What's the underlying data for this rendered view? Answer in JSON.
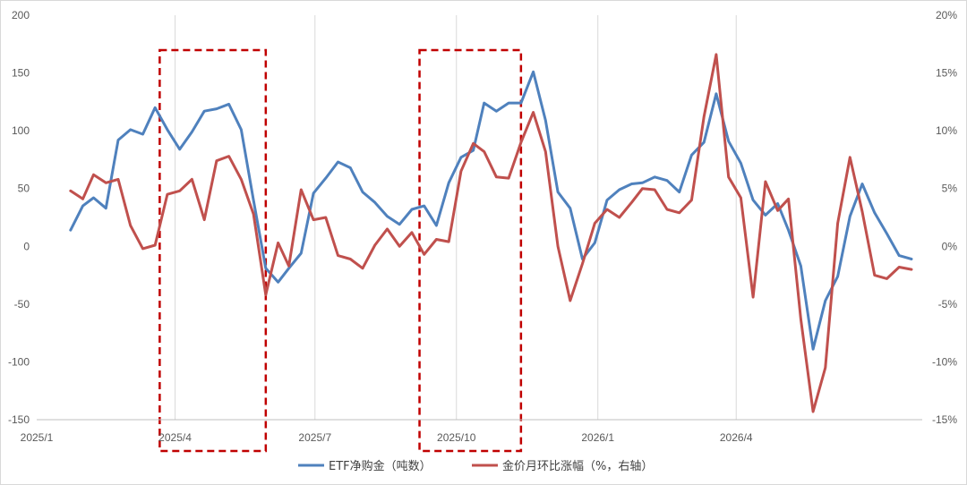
{
  "chart_data": {
    "type": "line",
    "title": "",
    "xlabel": "",
    "ylabel": "",
    "x_tick_labels": [
      "2025/1",
      "2025/4",
      "2025/7",
      "2025/10",
      "2026/1",
      "2026/4"
    ],
    "y_left": {
      "ylim": [
        -150,
        200
      ],
      "ticks": [
        -150,
        -100,
        -50,
        0,
        50,
        100,
        150,
        200
      ]
    },
    "y_right": {
      "ylim": [
        -15,
        20
      ],
      "ticks": [
        "-15%",
        "-10%",
        "-5%",
        "0%",
        "5%",
        "10%",
        "15%",
        "20%"
      ]
    },
    "grid": "vertical",
    "legend_position": "bottom",
    "highlight_boxes": [
      {
        "color": "#c00000",
        "from": "2025-03-22",
        "to": "2025-05-30",
        "style": "dashed"
      },
      {
        "color": "#c00000",
        "from": "2025-09-07",
        "to": "2025-11-12",
        "style": "dashed"
      }
    ],
    "series": [
      {
        "name": "ETF净购金（吨数）",
        "axis": "left",
        "color": "#4f81bd",
        "points": [
          [
            "2025-01-23",
            14
          ],
          [
            "2025-01-31",
            35
          ],
          [
            "2025-02-07",
            42
          ],
          [
            "2025-02-15",
            33
          ],
          [
            "2025-02-23",
            92
          ],
          [
            "2025-03-03",
            101
          ],
          [
            "2025-03-11",
            97
          ],
          [
            "2025-03-19",
            120
          ],
          [
            "2025-03-27",
            101
          ],
          [
            "2025-04-04",
            84
          ],
          [
            "2025-04-12",
            99
          ],
          [
            "2025-04-20",
            117
          ],
          [
            "2025-04-28",
            119
          ],
          [
            "2025-05-06",
            123
          ],
          [
            "2025-05-14",
            101
          ],
          [
            "2025-05-22",
            40
          ],
          [
            "2025-05-30",
            -19
          ],
          [
            "2025-06-07",
            -31
          ],
          [
            "2025-06-14",
            -19
          ],
          [
            "2025-06-22",
            -6
          ],
          [
            "2025-06-30",
            46
          ],
          [
            "2025-07-08",
            59
          ],
          [
            "2025-07-16",
            73
          ],
          [
            "2025-07-24",
            68
          ],
          [
            "2025-08-01",
            47
          ],
          [
            "2025-08-09",
            38
          ],
          [
            "2025-08-17",
            26
          ],
          [
            "2025-08-25",
            19
          ],
          [
            "2025-09-02",
            32
          ],
          [
            "2025-09-10",
            35
          ],
          [
            "2025-09-18",
            18
          ],
          [
            "2025-09-26",
            55
          ],
          [
            "2025-10-04",
            77
          ],
          [
            "2025-10-12",
            83
          ],
          [
            "2025-10-19",
            124
          ],
          [
            "2025-10-27",
            117
          ],
          [
            "2025-11-04",
            124
          ],
          [
            "2025-11-12",
            124
          ],
          [
            "2025-11-20",
            151
          ],
          [
            "2025-11-28",
            109
          ],
          [
            "2025-12-06",
            47
          ],
          [
            "2025-12-14",
            33
          ],
          [
            "2025-12-22",
            -11
          ],
          [
            "2025-12-30",
            3
          ],
          [
            "2026-01-07",
            40
          ],
          [
            "2026-01-15",
            49
          ],
          [
            "2026-01-23",
            54
          ],
          [
            "2026-01-30",
            55
          ],
          [
            "2026-02-07",
            60
          ],
          [
            "2026-02-15",
            57
          ],
          [
            "2026-02-23",
            47
          ],
          [
            "2026-03-03",
            79
          ],
          [
            "2026-03-11",
            90
          ],
          [
            "2026-03-19",
            132
          ],
          [
            "2026-03-27",
            91
          ],
          [
            "2026-04-04",
            72
          ],
          [
            "2026-04-12",
            40
          ],
          [
            "2026-04-20",
            27
          ],
          [
            "2026-04-28",
            37
          ],
          [
            "2026-05-05",
            14
          ],
          [
            "2026-05-13",
            -17
          ],
          [
            "2026-05-21",
            -89
          ],
          [
            "2026-05-29",
            -47
          ],
          [
            "2026-06-06",
            -26
          ],
          [
            "2026-06-14",
            26
          ],
          [
            "2026-06-22",
            54
          ],
          [
            "2026-06-30",
            29
          ],
          [
            "2026-07-08",
            11
          ],
          [
            "2026-07-16",
            -8
          ],
          [
            "2026-07-24",
            -11
          ]
        ]
      },
      {
        "name": "金价月环比涨幅（%，右轴）",
        "axis": "right",
        "color": "#c0504d",
        "points": [
          [
            "2025-01-23",
            4.8
          ],
          [
            "2025-01-31",
            4.1
          ],
          [
            "2025-02-07",
            6.2
          ],
          [
            "2025-02-15",
            5.5
          ],
          [
            "2025-02-23",
            5.8
          ],
          [
            "2025-03-03",
            1.8
          ],
          [
            "2025-03-11",
            -0.2
          ],
          [
            "2025-03-19",
            0.1
          ],
          [
            "2025-03-27",
            4.5
          ],
          [
            "2025-04-04",
            4.8
          ],
          [
            "2025-04-12",
            5.8
          ],
          [
            "2025-04-20",
            2.3
          ],
          [
            "2025-04-28",
            7.4
          ],
          [
            "2025-05-06",
            7.8
          ],
          [
            "2025-05-14",
            5.8
          ],
          [
            "2025-05-22",
            2.8
          ],
          [
            "2025-05-30",
            -4.2
          ],
          [
            "2025-06-07",
            0.3
          ],
          [
            "2025-06-14",
            -1.7
          ],
          [
            "2025-06-22",
            4.9
          ],
          [
            "2025-06-30",
            2.3
          ],
          [
            "2025-07-08",
            2.5
          ],
          [
            "2025-07-16",
            -0.8
          ],
          [
            "2025-07-24",
            -1.1
          ],
          [
            "2025-08-01",
            -1.9
          ],
          [
            "2025-08-09",
            0.1
          ],
          [
            "2025-08-17",
            1.5
          ],
          [
            "2025-08-25",
            0.0
          ],
          [
            "2025-09-02",
            1.2
          ],
          [
            "2025-09-10",
            -0.7
          ],
          [
            "2025-09-18",
            0.6
          ],
          [
            "2025-09-26",
            0.4
          ],
          [
            "2025-10-04",
            6.5
          ],
          [
            "2025-10-12",
            8.9
          ],
          [
            "2025-10-19",
            8.2
          ],
          [
            "2025-10-27",
            6.0
          ],
          [
            "2025-11-04",
            5.9
          ],
          [
            "2025-11-12",
            9.0
          ],
          [
            "2025-11-20",
            11.6
          ],
          [
            "2025-11-28",
            8.2
          ],
          [
            "2025-12-06",
            0.0
          ],
          [
            "2025-12-14",
            -4.7
          ],
          [
            "2025-12-22",
            -1.5
          ],
          [
            "2025-12-30",
            2.0
          ],
          [
            "2026-01-07",
            3.2
          ],
          [
            "2026-01-15",
            2.5
          ],
          [
            "2026-01-23",
            3.8
          ],
          [
            "2026-01-30",
            5.0
          ],
          [
            "2026-02-07",
            4.9
          ],
          [
            "2026-02-15",
            3.2
          ],
          [
            "2026-02-23",
            2.9
          ],
          [
            "2026-03-03",
            4.0
          ],
          [
            "2026-03-11",
            11.2
          ],
          [
            "2026-03-19",
            16.6
          ],
          [
            "2026-03-27",
            6.0
          ],
          [
            "2026-04-04",
            4.2
          ],
          [
            "2026-04-12",
            -4.4
          ],
          [
            "2026-04-20",
            5.6
          ],
          [
            "2026-04-28",
            3.1
          ],
          [
            "2026-05-05",
            4.1
          ],
          [
            "2026-05-13",
            -6.3
          ],
          [
            "2026-05-21",
            -14.3
          ],
          [
            "2026-05-29",
            -10.5
          ],
          [
            "2026-06-06",
            2.0
          ],
          [
            "2026-06-14",
            7.7
          ],
          [
            "2026-06-22",
            3.0
          ],
          [
            "2026-06-30",
            -2.5
          ],
          [
            "2026-07-08",
            -2.8
          ],
          [
            "2026-07-16",
            -1.8
          ],
          [
            "2026-07-24",
            -2.0
          ]
        ]
      }
    ]
  }
}
